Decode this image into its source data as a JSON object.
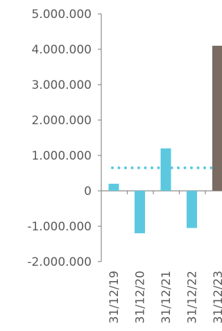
{
  "chart_data": {
    "type": "bar",
    "title": "",
    "xlabel": "",
    "ylabel": "",
    "categories": [
      "31/12/19",
      "31/12/20",
      "31/12/21",
      "31/12/22",
      "31/12/23"
    ],
    "values": [
      200000,
      -1200000,
      1200000,
      -1050000,
      4100000
    ],
    "bar_colors": [
      "#5bc8e0",
      "#5bc8e0",
      "#5bc8e0",
      "#5bc8e0",
      "#7a6c63"
    ],
    "reference_line": {
      "value": 650000,
      "style": "dotted",
      "color": "#5bc8e0"
    },
    "ylim": [
      -2000000,
      5000000
    ],
    "y_ticks": [
      {
        "value": 5000000,
        "label": "5.000.000"
      },
      {
        "value": 4000000,
        "label": "4.000.000"
      },
      {
        "value": 3000000,
        "label": "3.000.000"
      },
      {
        "value": 2000000,
        "label": "2.000.000"
      },
      {
        "value": 1000000,
        "label": "1.000.000"
      },
      {
        "value": 0,
        "label": "0"
      },
      {
        "value": -1000000,
        "label": "-1.000.000"
      },
      {
        "value": -2000000,
        "label": "-2.000.000"
      }
    ],
    "grid": false,
    "legend": "none",
    "axis_color": "#8a8a8a"
  }
}
